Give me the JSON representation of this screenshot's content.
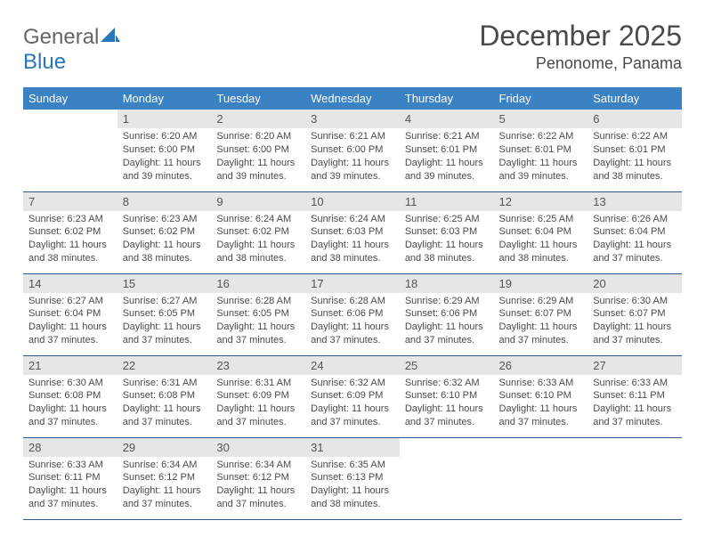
{
  "logo": {
    "text_general": "General",
    "text_blue": "Blue"
  },
  "header": {
    "month_title": "December 2025",
    "location": "Penonome, Panama"
  },
  "colors": {
    "header_bg": "#3b82c4",
    "header_text": "#ffffff",
    "daynum_bg": "#e6e6e6",
    "row_border": "#2a5a8a",
    "body_text": "#4a4a4a",
    "logo_grey": "#666666",
    "logo_blue": "#2a76b8"
  },
  "weekdays": [
    "Sunday",
    "Monday",
    "Tuesday",
    "Wednesday",
    "Thursday",
    "Friday",
    "Saturday"
  ],
  "weeks": [
    [
      null,
      {
        "n": "1",
        "sunrise": "Sunrise: 6:20 AM",
        "sunset": "Sunset: 6:00 PM",
        "daylight": "Daylight: 11 hours and 39 minutes."
      },
      {
        "n": "2",
        "sunrise": "Sunrise: 6:20 AM",
        "sunset": "Sunset: 6:00 PM",
        "daylight": "Daylight: 11 hours and 39 minutes."
      },
      {
        "n": "3",
        "sunrise": "Sunrise: 6:21 AM",
        "sunset": "Sunset: 6:00 PM",
        "daylight": "Daylight: 11 hours and 39 minutes."
      },
      {
        "n": "4",
        "sunrise": "Sunrise: 6:21 AM",
        "sunset": "Sunset: 6:01 PM",
        "daylight": "Daylight: 11 hours and 39 minutes."
      },
      {
        "n": "5",
        "sunrise": "Sunrise: 6:22 AM",
        "sunset": "Sunset: 6:01 PM",
        "daylight": "Daylight: 11 hours and 39 minutes."
      },
      {
        "n": "6",
        "sunrise": "Sunrise: 6:22 AM",
        "sunset": "Sunset: 6:01 PM",
        "daylight": "Daylight: 11 hours and 38 minutes."
      }
    ],
    [
      {
        "n": "7",
        "sunrise": "Sunrise: 6:23 AM",
        "sunset": "Sunset: 6:02 PM",
        "daylight": "Daylight: 11 hours and 38 minutes."
      },
      {
        "n": "8",
        "sunrise": "Sunrise: 6:23 AM",
        "sunset": "Sunset: 6:02 PM",
        "daylight": "Daylight: 11 hours and 38 minutes."
      },
      {
        "n": "9",
        "sunrise": "Sunrise: 6:24 AM",
        "sunset": "Sunset: 6:02 PM",
        "daylight": "Daylight: 11 hours and 38 minutes."
      },
      {
        "n": "10",
        "sunrise": "Sunrise: 6:24 AM",
        "sunset": "Sunset: 6:03 PM",
        "daylight": "Daylight: 11 hours and 38 minutes."
      },
      {
        "n": "11",
        "sunrise": "Sunrise: 6:25 AM",
        "sunset": "Sunset: 6:03 PM",
        "daylight": "Daylight: 11 hours and 38 minutes."
      },
      {
        "n": "12",
        "sunrise": "Sunrise: 6:25 AM",
        "sunset": "Sunset: 6:04 PM",
        "daylight": "Daylight: 11 hours and 38 minutes."
      },
      {
        "n": "13",
        "sunrise": "Sunrise: 6:26 AM",
        "sunset": "Sunset: 6:04 PM",
        "daylight": "Daylight: 11 hours and 37 minutes."
      }
    ],
    [
      {
        "n": "14",
        "sunrise": "Sunrise: 6:27 AM",
        "sunset": "Sunset: 6:04 PM",
        "daylight": "Daylight: 11 hours and 37 minutes."
      },
      {
        "n": "15",
        "sunrise": "Sunrise: 6:27 AM",
        "sunset": "Sunset: 6:05 PM",
        "daylight": "Daylight: 11 hours and 37 minutes."
      },
      {
        "n": "16",
        "sunrise": "Sunrise: 6:28 AM",
        "sunset": "Sunset: 6:05 PM",
        "daylight": "Daylight: 11 hours and 37 minutes."
      },
      {
        "n": "17",
        "sunrise": "Sunrise: 6:28 AM",
        "sunset": "Sunset: 6:06 PM",
        "daylight": "Daylight: 11 hours and 37 minutes."
      },
      {
        "n": "18",
        "sunrise": "Sunrise: 6:29 AM",
        "sunset": "Sunset: 6:06 PM",
        "daylight": "Daylight: 11 hours and 37 minutes."
      },
      {
        "n": "19",
        "sunrise": "Sunrise: 6:29 AM",
        "sunset": "Sunset: 6:07 PM",
        "daylight": "Daylight: 11 hours and 37 minutes."
      },
      {
        "n": "20",
        "sunrise": "Sunrise: 6:30 AM",
        "sunset": "Sunset: 6:07 PM",
        "daylight": "Daylight: 11 hours and 37 minutes."
      }
    ],
    [
      {
        "n": "21",
        "sunrise": "Sunrise: 6:30 AM",
        "sunset": "Sunset: 6:08 PM",
        "daylight": "Daylight: 11 hours and 37 minutes."
      },
      {
        "n": "22",
        "sunrise": "Sunrise: 6:31 AM",
        "sunset": "Sunset: 6:08 PM",
        "daylight": "Daylight: 11 hours and 37 minutes."
      },
      {
        "n": "23",
        "sunrise": "Sunrise: 6:31 AM",
        "sunset": "Sunset: 6:09 PM",
        "daylight": "Daylight: 11 hours and 37 minutes."
      },
      {
        "n": "24",
        "sunrise": "Sunrise: 6:32 AM",
        "sunset": "Sunset: 6:09 PM",
        "daylight": "Daylight: 11 hours and 37 minutes."
      },
      {
        "n": "25",
        "sunrise": "Sunrise: 6:32 AM",
        "sunset": "Sunset: 6:10 PM",
        "daylight": "Daylight: 11 hours and 37 minutes."
      },
      {
        "n": "26",
        "sunrise": "Sunrise: 6:33 AM",
        "sunset": "Sunset: 6:10 PM",
        "daylight": "Daylight: 11 hours and 37 minutes."
      },
      {
        "n": "27",
        "sunrise": "Sunrise: 6:33 AM",
        "sunset": "Sunset: 6:11 PM",
        "daylight": "Daylight: 11 hours and 37 minutes."
      }
    ],
    [
      {
        "n": "28",
        "sunrise": "Sunrise: 6:33 AM",
        "sunset": "Sunset: 6:11 PM",
        "daylight": "Daylight: 11 hours and 37 minutes."
      },
      {
        "n": "29",
        "sunrise": "Sunrise: 6:34 AM",
        "sunset": "Sunset: 6:12 PM",
        "daylight": "Daylight: 11 hours and 37 minutes."
      },
      {
        "n": "30",
        "sunrise": "Sunrise: 6:34 AM",
        "sunset": "Sunset: 6:12 PM",
        "daylight": "Daylight: 11 hours and 37 minutes."
      },
      {
        "n": "31",
        "sunrise": "Sunrise: 6:35 AM",
        "sunset": "Sunset: 6:13 PM",
        "daylight": "Daylight: 11 hours and 38 minutes."
      },
      null,
      null,
      null
    ]
  ]
}
